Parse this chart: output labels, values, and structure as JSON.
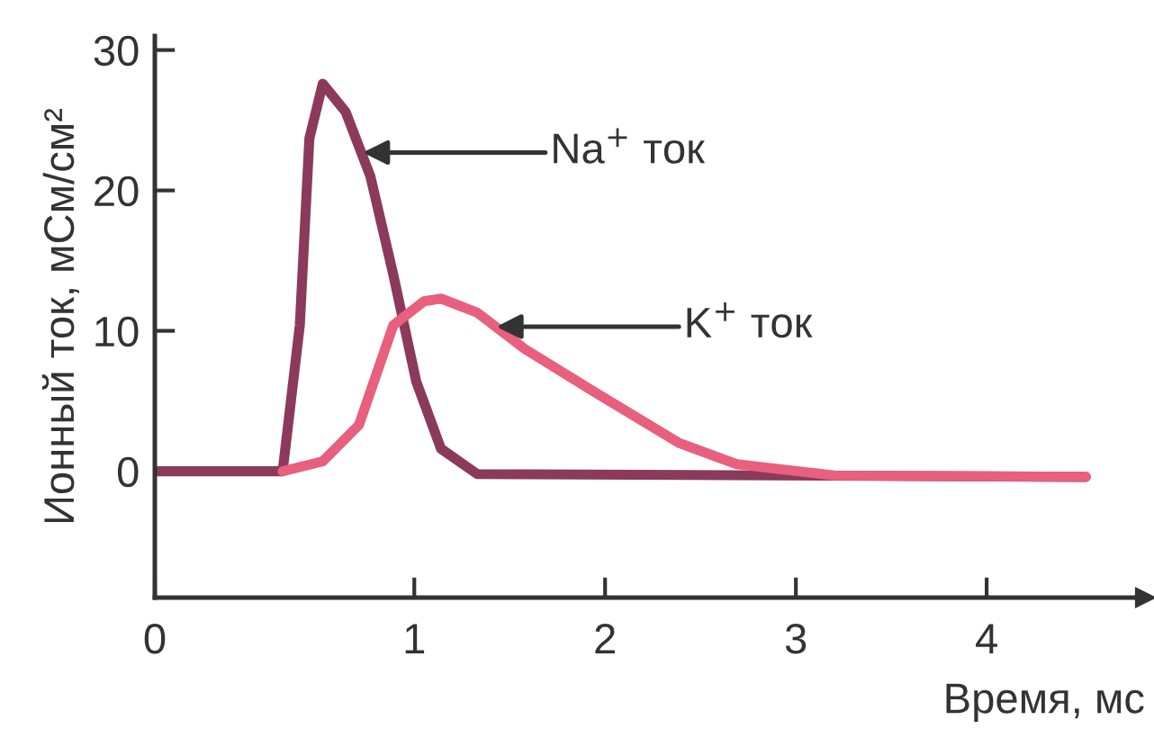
{
  "chart_data": {
    "type": "line",
    "xlabel": "Время, мс",
    "ylabel": "Ионный ток, мСм/см²",
    "xlim": [
      -0.36,
      4.83
    ],
    "ylim": [
      -9,
      31
    ],
    "xticks": [
      {
        "value": -0.36,
        "label": "0"
      },
      1,
      2,
      3,
      4
    ],
    "yticks": [
      0,
      10,
      20,
      30
    ],
    "grid": false,
    "legend": false,
    "marker": "none",
    "line_style": "solid",
    "series": [
      {
        "color": "#8b3a5c",
        "x": [
          -0.36,
          0.31,
          0.4,
          0.45,
          0.52,
          0.64,
          0.77,
          0.89,
          1.01,
          1.14,
          1.33,
          4.52
        ],
        "values": [
          0,
          0,
          10.4,
          23.7,
          27.6,
          25.6,
          21,
          14,
          6.4,
          1.6,
          -0.2,
          -0.4
        ]
      },
      {
        "color": "#e8607e",
        "x": [
          0.31,
          0.52,
          0.71,
          0.89,
          1.05,
          1.14,
          1.33,
          1.58,
          1.95,
          2.39,
          2.69,
          3.2,
          4.52
        ],
        "values": [
          0,
          0.7,
          3.3,
          10.4,
          12.1,
          12.3,
          11.3,
          8.7,
          5.6,
          2,
          0.5,
          -0.3,
          -0.4
        ]
      }
    ],
    "annotations": [
      {
        "text": "Na$^{+}$ ток",
        "x": 0.73,
        "y": 22.7
      },
      {
        "text": "K$^{+}$ ток",
        "x": 1.43,
        "y": 10.3
      }
    ]
  }
}
